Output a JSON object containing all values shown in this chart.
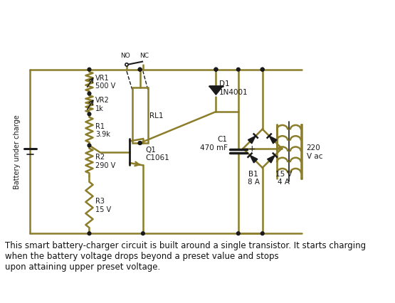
{
  "background_color": "#ffffff",
  "wire_color": "#8B7D2A",
  "wire_lw": 1.8,
  "dot_color": "#1a1a1a",
  "component_color": "#1a1a1a",
  "caption": "This smart battery-charger circuit is built around a single transistor. It starts charging\nwhen the battery voltage drops beyond a preset value and stops\nupon attaining upper preset voltage.",
  "caption_fontsize": 8.5,
  "labels": {
    "battery_label": "Battery under charge",
    "VR1": "VR1\n500 V",
    "VR2": "VR2\n1k",
    "R1": "R1\n3.9k",
    "R2": "R2\n290 V",
    "R3": "R3\n15 V",
    "RL1": "RL1",
    "D1": "D1\n1N4001",
    "C1": "C1\n470 mF",
    "Q1": "Q1\nC1061",
    "B1": "B1\n8 A",
    "transformer": "15 V\n4 A",
    "ac": "220\nV ac",
    "NO": "NO",
    "NC": "NC"
  }
}
